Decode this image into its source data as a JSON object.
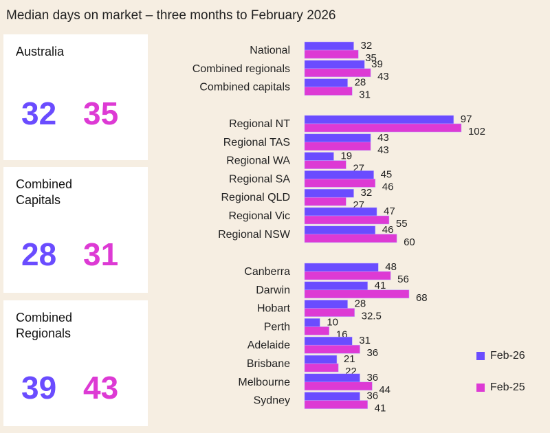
{
  "chart_data": {
    "type": "bar",
    "orientation": "horizontal",
    "title": "Median days on market – three months to February 2026",
    "categories": [
      "National",
      "Combined regionals",
      "Combined capitals",
      "Regional NT",
      "Regional TAS",
      "Regional WA",
      "Regional SA",
      "Regional QLD",
      "Regional Vic",
      "Regional NSW",
      "Canberra",
      "Darwin",
      "Hobart",
      "Perth",
      "Adelaide",
      "Brisbane",
      "Melbourne",
      "Sydney"
    ],
    "groups": [
      [
        0,
        1,
        2
      ],
      [
        3,
        4,
        5,
        6,
        7,
        8,
        9
      ],
      [
        10,
        11,
        12,
        13,
        14,
        15,
        16,
        17
      ]
    ],
    "series": [
      {
        "name": "Feb-26",
        "color": "#6a4cff",
        "values": [
          32,
          39,
          28,
          97,
          43,
          19,
          45,
          32,
          47,
          46,
          48,
          41,
          28,
          10,
          31,
          21,
          36,
          36
        ]
      },
      {
        "name": "Feb-25",
        "color": "#dd3ad4",
        "values": [
          35,
          43,
          31,
          102,
          43,
          27,
          46,
          27,
          55,
          60,
          56,
          68,
          32.5,
          16,
          36,
          22,
          44,
          41
        ]
      }
    ],
    "legend_placement": "right",
    "grid": false
  },
  "cards": [
    {
      "name": "Australia",
      "feb26": "32",
      "feb25": "35"
    },
    {
      "name": "Combined\nCapitals",
      "feb26": "28",
      "feb25": "31"
    },
    {
      "name": "Combined\nRegionals",
      "feb26": "39",
      "feb25": "43"
    }
  ],
  "colors": {
    "background": "#f6eee2",
    "feb26": "#6a4cff",
    "feb25": "#dd3ad4"
  }
}
